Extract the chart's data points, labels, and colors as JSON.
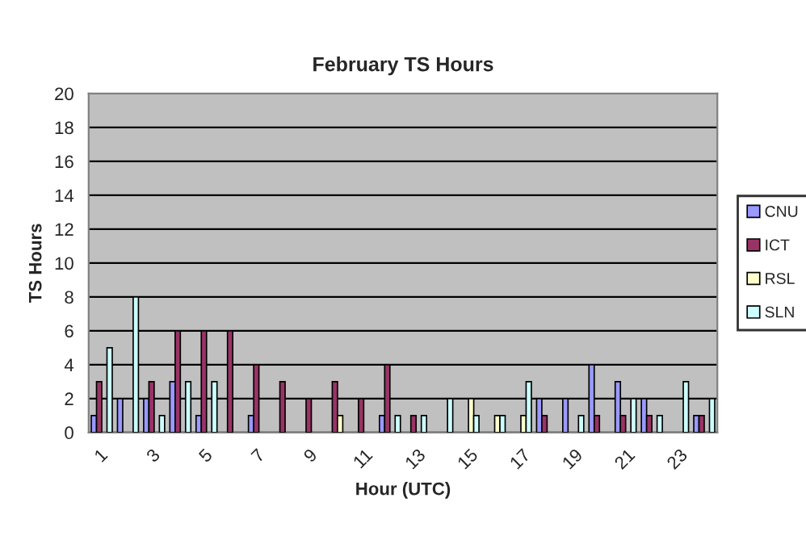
{
  "chart_data": {
    "type": "bar",
    "title": "February TS Hours",
    "xlabel": "Hour (UTC)",
    "ylabel": "TS Hours",
    "categories": [
      "1",
      null,
      "3",
      null,
      "5",
      null,
      "7",
      null,
      "9",
      null,
      "11",
      null,
      "13",
      null,
      "15",
      null,
      "17",
      null,
      "19",
      null,
      "21",
      null,
      "23",
      null
    ],
    "series": [
      {
        "name": "CNU",
        "color": "#9999ff",
        "values": [
          1,
          2,
          2,
          3,
          1,
          0,
          1,
          0,
          0,
          0,
          0,
          1,
          0,
          0,
          0,
          0,
          0,
          2,
          2,
          4,
          3,
          2,
          0,
          1
        ]
      },
      {
        "name": "ICT",
        "color": "#993366",
        "values": [
          3,
          0,
          3,
          6,
          6,
          6,
          4,
          3,
          2,
          3,
          2,
          4,
          1,
          0,
          0,
          0,
          0,
          1,
          0,
          1,
          1,
          1,
          0,
          1
        ]
      },
      {
        "name": "RSL",
        "color": "#ffffcc",
        "values": [
          0,
          0,
          0,
          0,
          0,
          0,
          0,
          0,
          0,
          1,
          0,
          0,
          0,
          0,
          2,
          1,
          1,
          0,
          0,
          0,
          0,
          0,
          0,
          0
        ]
      },
      {
        "name": "SLN",
        "color": "#ccffff",
        "values": [
          5,
          8,
          1,
          3,
          3,
          0,
          0,
          0,
          0,
          0,
          0,
          1,
          1,
          2,
          1,
          1,
          3,
          0,
          1,
          0,
          2,
          1,
          3,
          2
        ]
      }
    ],
    "ylim": [
      0,
      20
    ],
    "yticks": [
      0,
      2,
      4,
      6,
      8,
      10,
      12,
      14,
      16,
      18,
      20
    ],
    "grid": "y",
    "legend": "right"
  }
}
